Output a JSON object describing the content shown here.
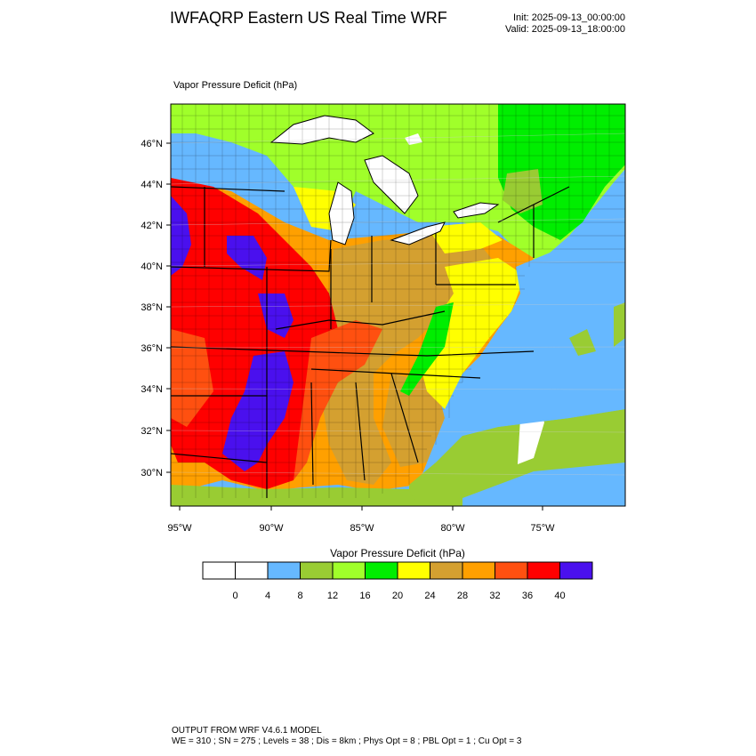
{
  "header": {
    "title": "IWFAQRP Eastern US Real Time WRF",
    "init": "Init: 2025-09-13_00:00:00",
    "valid": "Valid: 2025-09-13_18:00:00"
  },
  "plot": {
    "field_label": "Vapor Pressure Deficit   (hPa)",
    "lat_ticks": [
      "46°N",
      "44°N",
      "42°N",
      "40°N",
      "38°N",
      "36°N",
      "34°N",
      "32°N",
      "30°N"
    ],
    "lon_ticks": [
      "95°W",
      "90°W",
      "85°W",
      "80°W",
      "75°W"
    ],
    "colors": {
      "water": "#66b8ff",
      "land_low": "#99cc33",
      "border": "#000000"
    }
  },
  "colorbar": {
    "title": "Vapor Pressure Deficit  (hPa)",
    "labels": [
      "0",
      "4",
      "8",
      "12",
      "16",
      "20",
      "24",
      "28",
      "32",
      "36",
      "40"
    ],
    "bins": [
      {
        "color": "#ffffff"
      },
      {
        "color": "#ffffff"
      },
      {
        "color": "#66b8ff"
      },
      {
        "color": "#99cc33"
      },
      {
        "color": "#a0ff2a"
      },
      {
        "color": "#00ee00"
      },
      {
        "color": "#ffff00"
      },
      {
        "color": "#d4a030"
      },
      {
        "color": "#ffa000"
      },
      {
        "color": "#ff5010"
      },
      {
        "color": "#ff0000"
      },
      {
        "color": "#4a10ee"
      }
    ]
  },
  "footer": {
    "line1": "OUTPUT FROM WRF V4.6.1 MODEL",
    "line2": "WE = 310 ; SN = 275 ; Levels = 38 ; Dis = 8km ; Phys Opt = 8 ; PBL Opt = 1 ; Cu Opt = 3"
  }
}
